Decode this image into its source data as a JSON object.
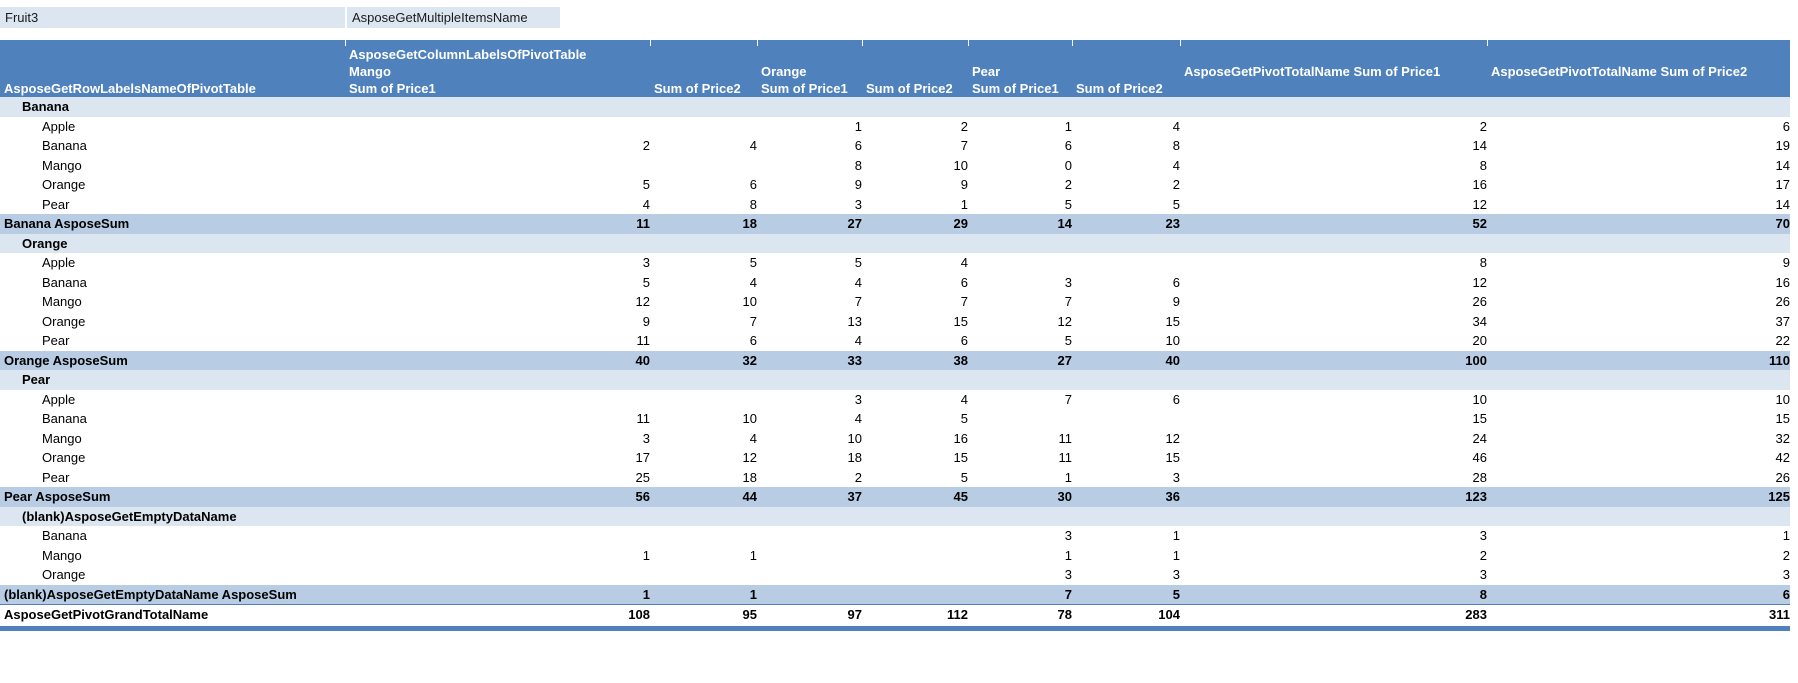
{
  "filter": {
    "label": "Fruit3",
    "value": "AsposeGetMultipleItemsName"
  },
  "header": {
    "row_labels_title": "AsposeGetRowLabelsNameOfPivotTable",
    "column_labels_title": "AsposeGetColumnLabelsOfPivotTable",
    "groups": [
      {
        "label": "Mango"
      },
      {
        "label": "Orange"
      },
      {
        "label": "Pear"
      }
    ],
    "sub_headers": [
      "Sum of Price1",
      "Sum of Price2"
    ],
    "total_headers": [
      "AsposeGetPivotTotalName Sum of Price1",
      "AsposeGetPivotTotalName Sum of Price2"
    ]
  },
  "colors": {
    "header_bg": "#4f81bd",
    "subtotal_bg": "#b8cce4",
    "group_bg": "#dce6f1",
    "filter_bg": "#dce6f1",
    "header_text": "#ffffff"
  },
  "rows": [
    {
      "label": "Banana",
      "type": "group",
      "values": [
        "",
        "",
        "",
        "",
        "",
        "",
        "",
        ""
      ]
    },
    {
      "label": "Apple",
      "type": "item",
      "values": [
        "",
        "",
        "1",
        "2",
        "1",
        "4",
        "2",
        "6"
      ]
    },
    {
      "label": "Banana",
      "type": "item",
      "values": [
        "2",
        "4",
        "6",
        "7",
        "6",
        "8",
        "14",
        "19"
      ]
    },
    {
      "label": "Mango",
      "type": "item",
      "values": [
        "",
        "",
        "8",
        "10",
        "0",
        "4",
        "8",
        "14"
      ]
    },
    {
      "label": "Orange",
      "type": "item",
      "values": [
        "5",
        "6",
        "9",
        "9",
        "2",
        "2",
        "16",
        "17"
      ]
    },
    {
      "label": "Pear",
      "type": "item",
      "values": [
        "4",
        "8",
        "3",
        "1",
        "5",
        "5",
        "12",
        "14"
      ]
    },
    {
      "label": "Banana AsposeSum",
      "type": "subtotal",
      "values": [
        "11",
        "18",
        "27",
        "29",
        "14",
        "23",
        "52",
        "70"
      ]
    },
    {
      "label": "Orange",
      "type": "group",
      "values": [
        "",
        "",
        "",
        "",
        "",
        "",
        "",
        ""
      ]
    },
    {
      "label": "Apple",
      "type": "item",
      "values": [
        "3",
        "5",
        "5",
        "4",
        "",
        "",
        "8",
        "9"
      ]
    },
    {
      "label": "Banana",
      "type": "item",
      "values": [
        "5",
        "4",
        "4",
        "6",
        "3",
        "6",
        "12",
        "16"
      ]
    },
    {
      "label": "Mango",
      "type": "item",
      "values": [
        "12",
        "10",
        "7",
        "7",
        "7",
        "9",
        "26",
        "26"
      ]
    },
    {
      "label": "Orange",
      "type": "item",
      "values": [
        "9",
        "7",
        "13",
        "15",
        "12",
        "15",
        "34",
        "37"
      ]
    },
    {
      "label": "Pear",
      "type": "item",
      "values": [
        "11",
        "6",
        "4",
        "6",
        "5",
        "10",
        "20",
        "22"
      ]
    },
    {
      "label": "Orange AsposeSum",
      "type": "subtotal",
      "values": [
        "40",
        "32",
        "33",
        "38",
        "27",
        "40",
        "100",
        "110"
      ]
    },
    {
      "label": "Pear",
      "type": "group",
      "values": [
        "",
        "",
        "",
        "",
        "",
        "",
        "",
        ""
      ]
    },
    {
      "label": "Apple",
      "type": "item",
      "values": [
        "",
        "",
        "3",
        "4",
        "7",
        "6",
        "10",
        "10"
      ]
    },
    {
      "label": "Banana",
      "type": "item",
      "values": [
        "11",
        "10",
        "4",
        "5",
        "",
        "",
        "15",
        "15"
      ]
    },
    {
      "label": "Mango",
      "type": "item",
      "values": [
        "3",
        "4",
        "10",
        "16",
        "11",
        "12",
        "24",
        "32"
      ]
    },
    {
      "label": "Orange",
      "type": "item",
      "values": [
        "17",
        "12",
        "18",
        "15",
        "11",
        "15",
        "46",
        "42"
      ]
    },
    {
      "label": "Pear",
      "type": "item",
      "values": [
        "25",
        "18",
        "2",
        "5",
        "1",
        "3",
        "28",
        "26"
      ]
    },
    {
      "label": "Pear AsposeSum",
      "type": "subtotal",
      "values": [
        "56",
        "44",
        "37",
        "45",
        "30",
        "36",
        "123",
        "125"
      ]
    },
    {
      "label": "(blank)AsposeGetEmptyDataName",
      "type": "group",
      "values": [
        "",
        "",
        "",
        "",
        "",
        "",
        "",
        ""
      ]
    },
    {
      "label": "Banana",
      "type": "item",
      "values": [
        "",
        "",
        "",
        "",
        "3",
        "1",
        "3",
        "1"
      ]
    },
    {
      "label": "Mango",
      "type": "item",
      "values": [
        "1",
        "1",
        "",
        "",
        "1",
        "1",
        "2",
        "2"
      ]
    },
    {
      "label": "Orange",
      "type": "item",
      "values": [
        "",
        "",
        "",
        "",
        "3",
        "3",
        "3",
        "3"
      ]
    },
    {
      "label": "(blank)AsposeGetEmptyDataName AsposeSum",
      "type": "subtotal",
      "values": [
        "1",
        "1",
        "",
        "",
        "7",
        "5",
        "8",
        "6"
      ]
    },
    {
      "label": "AsposeGetPivotGrandTotalName",
      "type": "grand",
      "values": [
        "108",
        "95",
        "97",
        "112",
        "78",
        "104",
        "283",
        "311"
      ]
    }
  ]
}
